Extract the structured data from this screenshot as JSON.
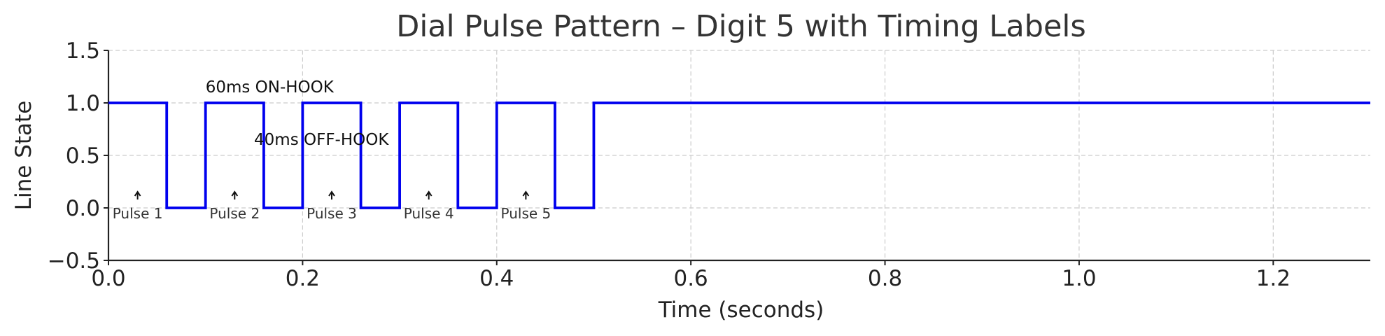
{
  "chart_data": {
    "type": "line",
    "title": "Dial Pulse Pattern – Digit 5 with Timing Labels",
    "xlabel": "Time (seconds)",
    "ylabel": "Line State",
    "xlim": [
      0.0,
      1.3
    ],
    "ylim": [
      -0.5,
      1.5
    ],
    "x_ticks": [
      0.0,
      0.2,
      0.4,
      0.6,
      0.8,
      1.0,
      1.2
    ],
    "x_tick_labels": [
      "0.0",
      "0.2",
      "0.4",
      "0.6",
      "0.8",
      "1.0",
      "1.2"
    ],
    "y_ticks": [
      -0.5,
      0.0,
      0.5,
      1.0,
      1.5
    ],
    "y_tick_labels": [
      "−0.5",
      "0.0",
      "0.5",
      "1.0",
      "1.5"
    ],
    "grid": true,
    "series": [
      {
        "name": "Line State",
        "color": "#0000ee",
        "x": [
          0.0,
          0.06,
          0.06,
          0.1,
          0.1,
          0.16,
          0.16,
          0.2,
          0.2,
          0.26,
          0.26,
          0.3,
          0.3,
          0.36,
          0.36,
          0.4,
          0.4,
          0.46,
          0.46,
          0.5,
          0.5,
          1.3
        ],
        "y": [
          1,
          1,
          0,
          0,
          1,
          1,
          0,
          0,
          1,
          1,
          0,
          0,
          1,
          1,
          0,
          0,
          1,
          1,
          0,
          0,
          1,
          1
        ]
      }
    ],
    "annotations": [
      {
        "text": "60ms ON-HOOK",
        "x": 0.1,
        "y": 1.1
      },
      {
        "text": "40ms OFF-HOOK",
        "x": 0.15,
        "y": 0.6
      }
    ],
    "pulse_labels": [
      {
        "text": "Pulse 1",
        "x": 0.03,
        "y": 0.0
      },
      {
        "text": "Pulse 2",
        "x": 0.13,
        "y": 0.0
      },
      {
        "text": "Pulse 3",
        "x": 0.23,
        "y": 0.0
      },
      {
        "text": "Pulse 4",
        "x": 0.33,
        "y": 0.0
      },
      {
        "text": "Pulse 5",
        "x": 0.43,
        "y": 0.0
      }
    ]
  }
}
